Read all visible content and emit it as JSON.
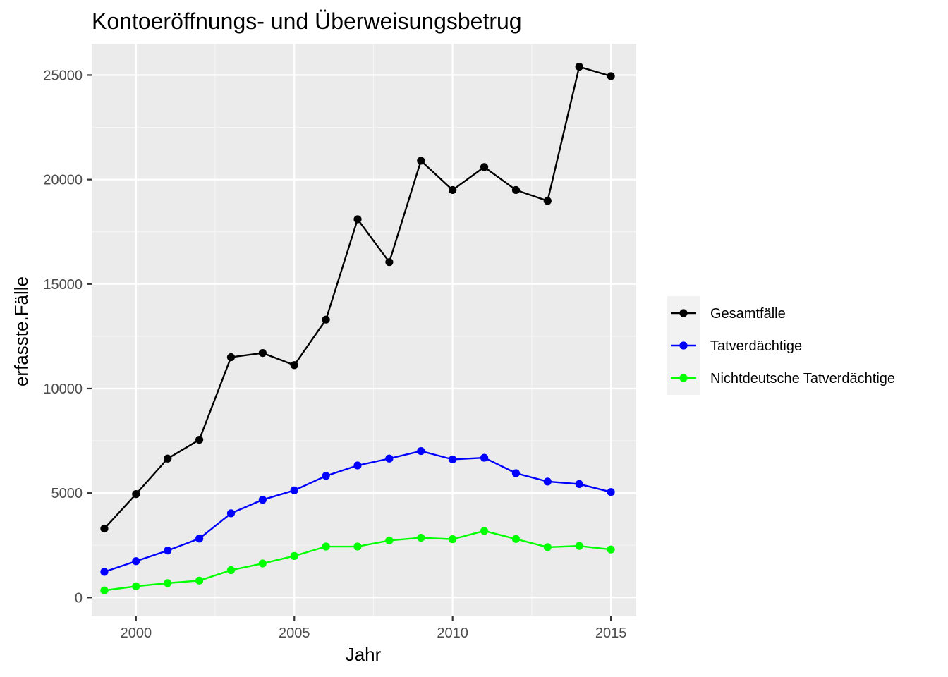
{
  "chart_data": {
    "type": "line",
    "title": "Kontoeröffnungs- und Überweisungsbetrug",
    "xlabel": "Jahr",
    "ylabel": "erfasste.Fälle",
    "x": [
      1999,
      2000,
      2001,
      2002,
      2003,
      2004,
      2005,
      2006,
      2007,
      2008,
      2009,
      2010,
      2011,
      2012,
      2013,
      2014,
      2015
    ],
    "x_ticks": [
      2000,
      2005,
      2010,
      2015
    ],
    "y_ticks": [
      0,
      5000,
      10000,
      15000,
      20000,
      25000
    ],
    "xlim": [
      1998.6,
      2015.8
    ],
    "ylim": [
      -900,
      26500
    ],
    "grid": true,
    "legend_position": "right",
    "series": [
      {
        "name": "Gesamtfälle",
        "color": "#000000",
        "values": [
          3300,
          4950,
          6650,
          7550,
          11500,
          11700,
          11120,
          13300,
          18100,
          16050,
          20900,
          19500,
          20600,
          19500,
          18980,
          25400,
          24950
        ]
      },
      {
        "name": "Tatverdächtige",
        "color": "#0000ff",
        "values": [
          1230,
          1740,
          2250,
          2820,
          4030,
          4680,
          5130,
          5820,
          6320,
          6650,
          7010,
          6610,
          6690,
          5950,
          5550,
          5430,
          5050
        ]
      },
      {
        "name": "Nichtdeutsche Tatverdächtige",
        "color": "#00ff00",
        "values": [
          340,
          540,
          690,
          810,
          1310,
          1630,
          1990,
          2440,
          2440,
          2730,
          2860,
          2790,
          3190,
          2800,
          2410,
          2470,
          2300
        ]
      }
    ]
  },
  "colors": {
    "panel_background": "#ebebeb",
    "grid_major": "#ffffff",
    "grid_minor": "#f5f5f5",
    "tick_text": "#4d4d4d",
    "tick_mark": "#333333"
  }
}
